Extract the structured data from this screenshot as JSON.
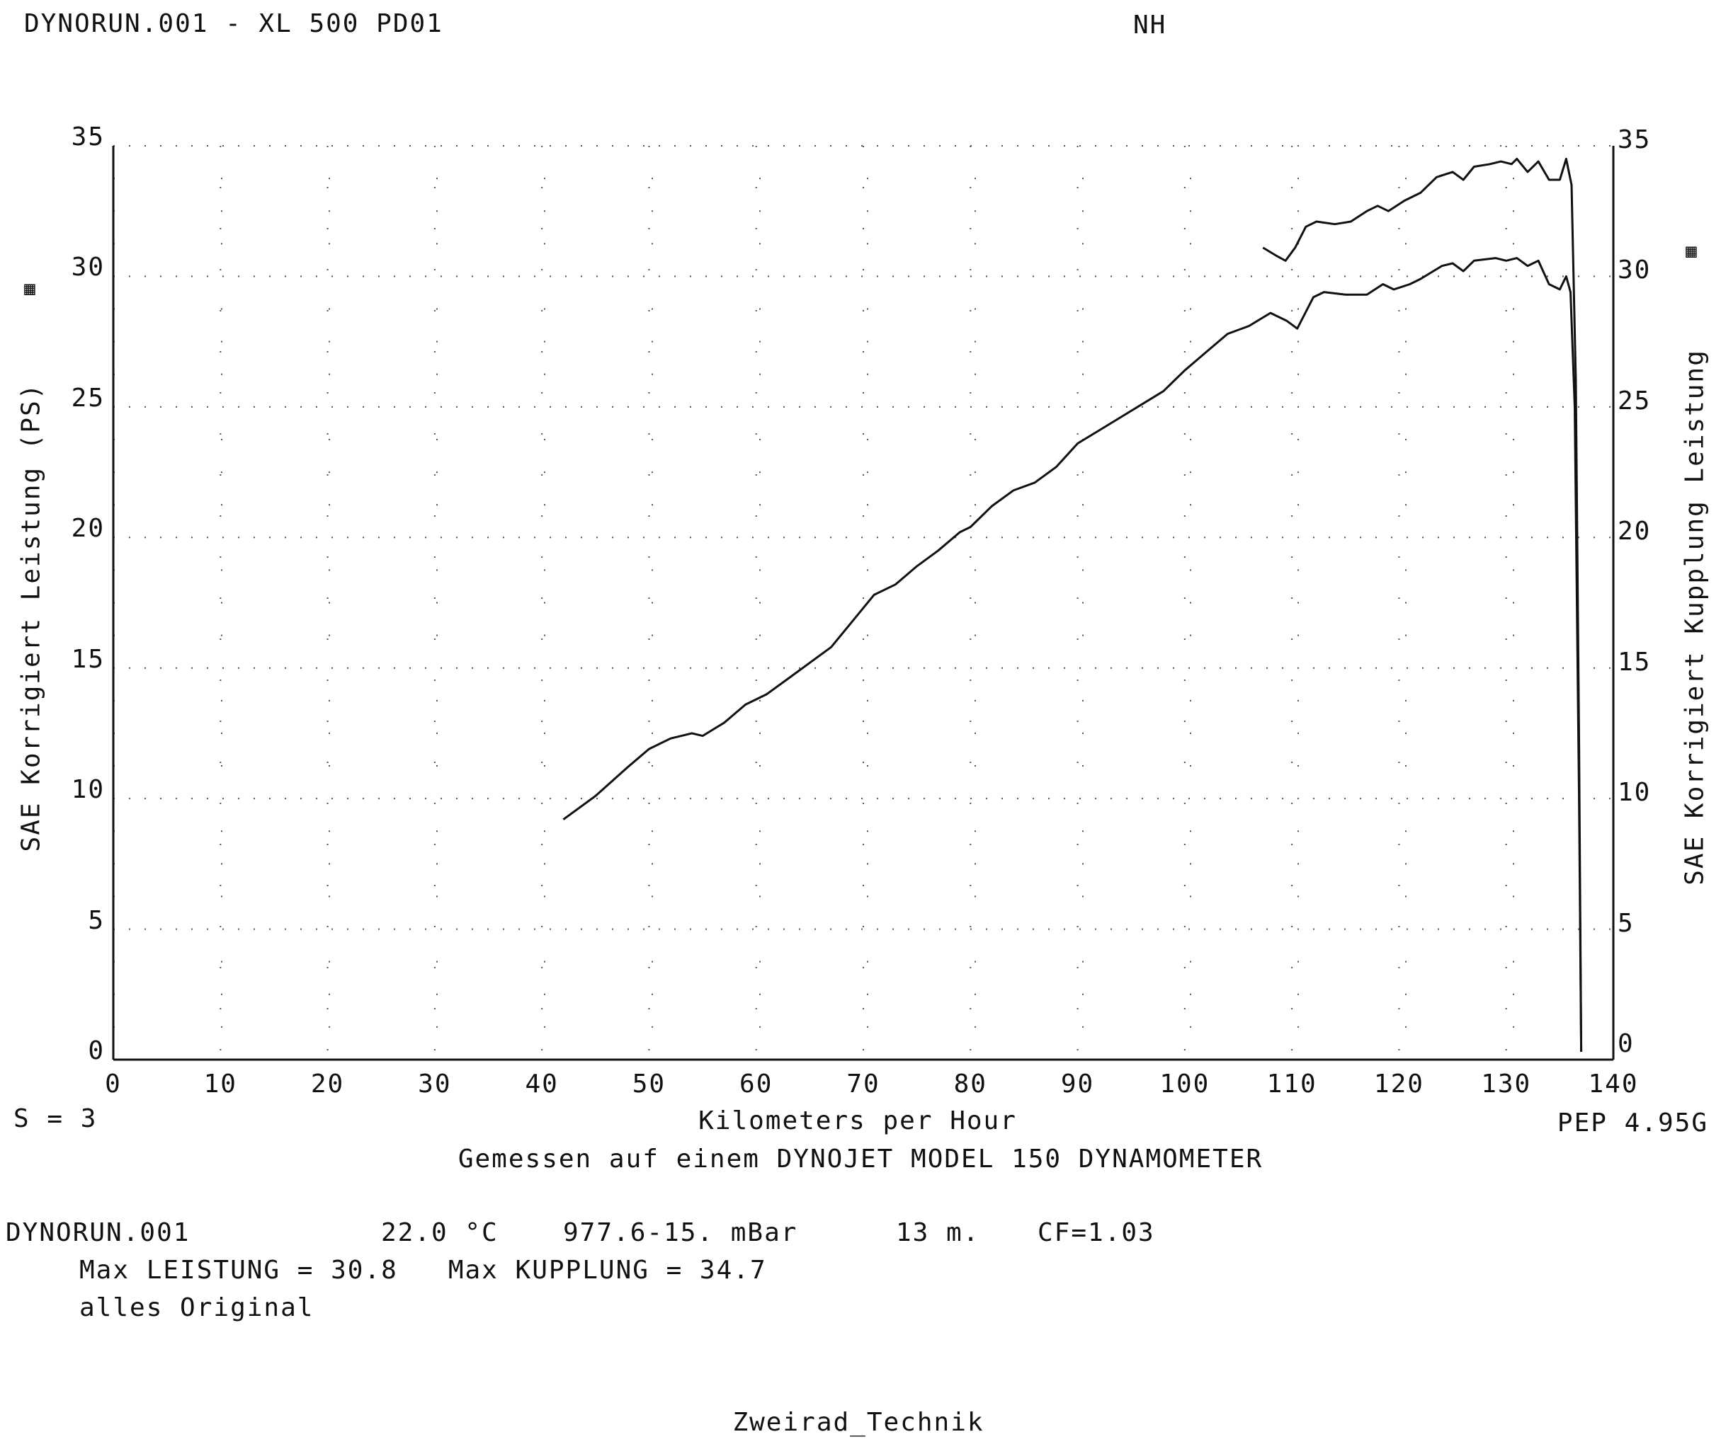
{
  "header": {
    "title": "DYNORUN.001 - XL 500 PD01",
    "operator": "NH"
  },
  "footer_left": "S = 3",
  "footer_right": "PEP 4.95G",
  "dyno_note": "Gemessen auf einem DYNOJET MODEL 150 DYNAMOMETER",
  "run_info": {
    "file": "DYNORUN.001",
    "temperature": "22.0 °C",
    "pressure": "977.6-15. mBar",
    "altitude": "13 m.",
    "cf": "CF=1.03",
    "max_line": "Max LEISTUNG = 30.8   Max KUPPLUNG = 34.7",
    "comment": "alles Original"
  },
  "signature": "Zweirad_Technik",
  "icons": {
    "left": "grid-legend-icon",
    "right": "grid-legend-icon"
  },
  "chart_data": {
    "type": "line",
    "title": "DYNORUN.001 - XL 500 PD01",
    "xlabel": "Kilometers per Hour",
    "ylabel": "SAE Korrigiert Leistung (PS)",
    "ylabel_right": "SAE Korrigiert Kupplung Leistung",
    "xlim": [
      0,
      140
    ],
    "ylim": [
      0,
      35
    ],
    "x_ticks": [
      "0",
      "10",
      "20",
      "30",
      "40",
      "50",
      "60",
      "70",
      "80",
      "90",
      "100",
      "110",
      "120",
      "130",
      "140"
    ],
    "y_ticks": [
      "0",
      "5",
      "10",
      "15",
      "20",
      "25",
      "30",
      "35"
    ],
    "y_ticks_right": [
      "0",
      "5",
      "10",
      "15",
      "20",
      "25",
      "30",
      "35"
    ],
    "grid": true,
    "series": [
      {
        "name": "Leistung",
        "points": [
          [
            42,
            9.2
          ],
          [
            45,
            10.1
          ],
          [
            48,
            11.2
          ],
          [
            50,
            11.9
          ],
          [
            52,
            12.3
          ],
          [
            54,
            12.5
          ],
          [
            55,
            12.4
          ],
          [
            57,
            12.9
          ],
          [
            59,
            13.6
          ],
          [
            61,
            14.0
          ],
          [
            63,
            14.6
          ],
          [
            65,
            15.2
          ],
          [
            67,
            15.8
          ],
          [
            69,
            16.8
          ],
          [
            71,
            17.8
          ],
          [
            73,
            18.2
          ],
          [
            75,
            18.9
          ],
          [
            77,
            19.5
          ],
          [
            79,
            20.2
          ],
          [
            80,
            20.4
          ],
          [
            82,
            21.2
          ],
          [
            84,
            21.8
          ],
          [
            86,
            22.1
          ],
          [
            88,
            22.7
          ],
          [
            90,
            23.6
          ],
          [
            92,
            24.1
          ],
          [
            94,
            24.6
          ],
          [
            96,
            25.1
          ],
          [
            98,
            25.6
          ],
          [
            100,
            26.4
          ],
          [
            102,
            27.1
          ],
          [
            104,
            27.8
          ],
          [
            106,
            28.1
          ],
          [
            108,
            28.6
          ],
          [
            109.5,
            28.3
          ],
          [
            110.5,
            28.0
          ],
          [
            112,
            29.2
          ],
          [
            113,
            29.4
          ],
          [
            115,
            29.3
          ],
          [
            117,
            29.3
          ],
          [
            118.5,
            29.7
          ],
          [
            119.5,
            29.5
          ],
          [
            121,
            29.7
          ],
          [
            122,
            29.9
          ],
          [
            124,
            30.4
          ],
          [
            125,
            30.5
          ],
          [
            126,
            30.2
          ],
          [
            127,
            30.6
          ],
          [
            129,
            30.7
          ],
          [
            130,
            30.6
          ],
          [
            131,
            30.7
          ],
          [
            132,
            30.4
          ],
          [
            133,
            30.6
          ],
          [
            134,
            29.7
          ],
          [
            135,
            29.5
          ],
          [
            135.6,
            30.0
          ],
          [
            136,
            29.4
          ],
          [
            136.4,
            25.0
          ],
          [
            136.8,
            10.0
          ],
          [
            137,
            0.3
          ]
        ]
      },
      {
        "name": "Kupplung",
        "points": [
          [
            107.3,
            31.1
          ],
          [
            108.5,
            30.8
          ],
          [
            109.4,
            30.6
          ],
          [
            110.3,
            31.1
          ],
          [
            111.3,
            31.9
          ],
          [
            112.3,
            32.1
          ],
          [
            114,
            32.0
          ],
          [
            115.5,
            32.1
          ],
          [
            117,
            32.5
          ],
          [
            118,
            32.7
          ],
          [
            119,
            32.5
          ],
          [
            120.5,
            32.9
          ],
          [
            122,
            33.2
          ],
          [
            123.5,
            33.8
          ],
          [
            125,
            34.0
          ],
          [
            126,
            33.7
          ],
          [
            127,
            34.2
          ],
          [
            128.5,
            34.3
          ],
          [
            129.5,
            34.4
          ],
          [
            130.5,
            34.3
          ],
          [
            131,
            34.5
          ],
          [
            132,
            34.0
          ],
          [
            133,
            34.4
          ],
          [
            134,
            33.7
          ],
          [
            135,
            33.7
          ],
          [
            135.6,
            34.5
          ],
          [
            136.1,
            33.5
          ],
          [
            136.5,
            26.0
          ],
          [
            136.8,
            12.0
          ],
          [
            137,
            0.3
          ]
        ]
      }
    ]
  }
}
